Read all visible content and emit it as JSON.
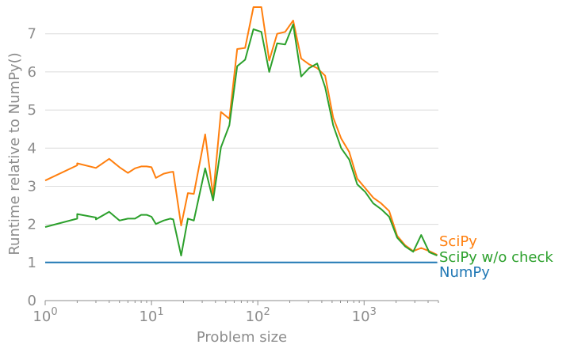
{
  "chart_data": {
    "type": "line",
    "xlabel": "Problem size",
    "ylabel": "Runtime relative to NumPy()",
    "xscale": "log",
    "xlim": [
      1,
      5000
    ],
    "ylim": [
      0,
      7.7
    ],
    "yticks": [
      0,
      1,
      2,
      3,
      4,
      5,
      6,
      7
    ],
    "xticks": [
      {
        "base": "10",
        "exp": "0",
        "value": 1
      },
      {
        "base": "10",
        "exp": "1",
        "value": 10
      },
      {
        "base": "10",
        "exp": "2",
        "value": 100
      },
      {
        "base": "10",
        "exp": "3",
        "value": 1000
      }
    ],
    "grid": "horizontal",
    "legend": "right-end labels",
    "series": [
      {
        "name": "SciPy",
        "color": "#ff7f0e",
        "x": [
          1,
          2,
          2,
          3,
          4,
          5,
          6,
          7,
          8,
          9,
          10,
          11,
          13,
          15,
          16,
          19,
          22,
          25,
          32,
          38,
          45,
          54,
          64,
          76,
          91,
          108,
          128,
          152,
          181,
          215,
          256,
          304,
          362,
          430,
          512,
          609,
          724,
          861,
          1024,
          1218,
          1448,
          1722,
          2048,
          2435,
          2896,
          3444,
          4096,
          4871
        ],
        "y": [
          3.15,
          3.55,
          3.6,
          3.48,
          3.72,
          3.5,
          3.35,
          3.47,
          3.52,
          3.52,
          3.5,
          3.22,
          3.33,
          3.37,
          3.38,
          1.97,
          2.82,
          2.8,
          4.36,
          2.75,
          4.95,
          4.77,
          6.6,
          6.63,
          7.7,
          7.7,
          6.3,
          7.0,
          7.05,
          7.35,
          6.35,
          6.2,
          6.1,
          5.9,
          4.8,
          4.25,
          3.9,
          3.2,
          2.95,
          2.7,
          2.55,
          2.35,
          1.7,
          1.45,
          1.3,
          1.38,
          1.3,
          1.2
        ]
      },
      {
        "name": "SciPy w/o check",
        "color": "#2ca02c",
        "x": [
          1,
          2,
          2,
          3,
          3,
          4,
          5,
          6,
          7,
          8,
          9,
          10,
          11,
          13,
          15,
          16,
          19,
          22,
          25,
          32,
          38,
          45,
          54,
          64,
          76,
          91,
          108,
          128,
          152,
          181,
          215,
          256,
          304,
          362,
          430,
          512,
          609,
          724,
          861,
          1024,
          1218,
          1448,
          1722,
          2048,
          2435,
          2896,
          3444,
          4096,
          4871
        ],
        "y": [
          1.93,
          2.15,
          2.27,
          2.18,
          2.13,
          2.33,
          2.1,
          2.15,
          2.15,
          2.25,
          2.25,
          2.2,
          2.01,
          2.1,
          2.15,
          2.13,
          1.18,
          2.15,
          2.1,
          3.47,
          2.63,
          4.02,
          4.6,
          6.15,
          6.32,
          7.12,
          7.05,
          6.0,
          6.75,
          6.72,
          7.25,
          5.88,
          6.1,
          6.22,
          5.6,
          4.6,
          4.0,
          3.7,
          3.05,
          2.85,
          2.55,
          2.4,
          2.2,
          1.65,
          1.42,
          1.28,
          1.72,
          1.27,
          1.18
        ]
      },
      {
        "name": "NumPy",
        "color": "#1f77b4",
        "x": [
          1,
          4871
        ],
        "y": [
          1.0,
          1.0
        ]
      }
    ]
  }
}
